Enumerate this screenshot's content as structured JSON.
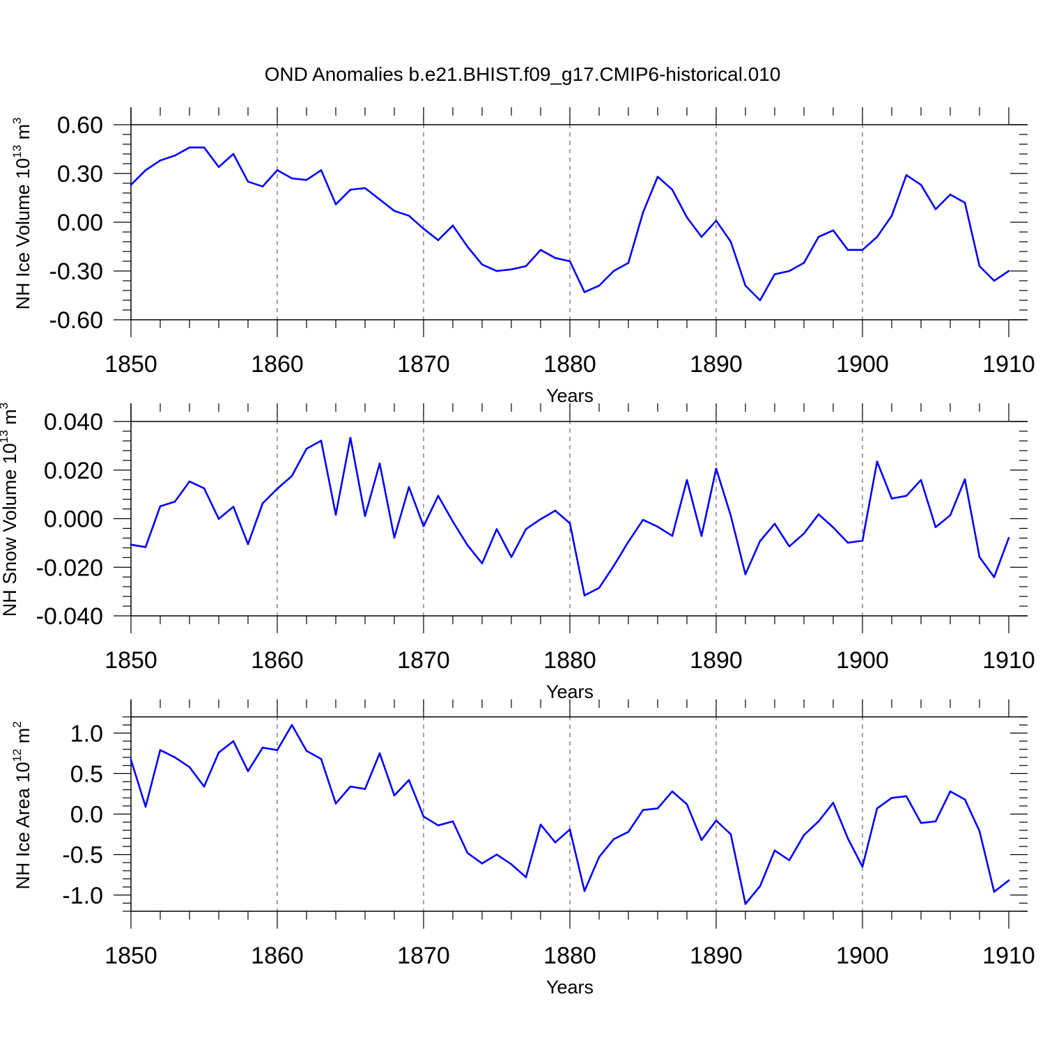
{
  "title": "OND Anomalies b.e21.BHIST.f09_g17.CMIP6-historical.010",
  "colors": {
    "line": "#0000ff",
    "axis": "#000000",
    "grid": "#666666",
    "background": "#ffffff"
  },
  "chart_data": [
    {
      "type": "line",
      "name": "nh-ice-volume",
      "title": "OND Anomalies b.e21.BHIST.f09_g17.CMIP6-historical.010",
      "ylabel": {
        "text": "NH Ice Volume 10",
        "exp": "13",
        "unit": " m",
        "unit_exp": "3"
      },
      "xlabel": "Years",
      "xlim": [
        1850,
        1910
      ],
      "ylim": [
        -0.6,
        0.6
      ],
      "yticks": [
        -0.6,
        -0.3,
        0.0,
        0.3,
        0.6
      ],
      "ytick_labels": [
        "-0.60",
        "-0.30",
        "0.00",
        "0.30",
        "0.60"
      ],
      "xticks": [
        1850,
        1860,
        1870,
        1880,
        1890,
        1900,
        1910
      ],
      "xtick_labels": [
        "1850",
        "1860",
        "1870",
        "1880",
        "1890",
        "1900",
        "1910"
      ],
      "grid": "vertical dashed at decades",
      "x": [
        1850,
        1851,
        1852,
        1853,
        1854,
        1855,
        1856,
        1857,
        1858,
        1859,
        1860,
        1861,
        1862,
        1863,
        1864,
        1865,
        1866,
        1867,
        1868,
        1869,
        1870,
        1871,
        1872,
        1873,
        1874,
        1875,
        1876,
        1877,
        1878,
        1879,
        1880,
        1881,
        1882,
        1883,
        1884,
        1885,
        1886,
        1887,
        1888,
        1889,
        1890,
        1891,
        1892,
        1893,
        1894,
        1895,
        1896,
        1897,
        1898,
        1899,
        1900,
        1901,
        1902,
        1903,
        1904,
        1905,
        1906,
        1907,
        1908,
        1909,
        1910
      ],
      "values": [
        0.23,
        0.32,
        0.38,
        0.41,
        0.46,
        0.46,
        0.34,
        0.42,
        0.25,
        0.22,
        0.32,
        0.27,
        0.26,
        0.32,
        0.11,
        0.2,
        0.21,
        0.14,
        0.07,
        0.04,
        -0.04,
        -0.11,
        -0.02,
        -0.15,
        -0.26,
        -0.3,
        -0.29,
        -0.27,
        -0.17,
        -0.22,
        -0.24,
        -0.43,
        -0.39,
        -0.3,
        -0.25,
        0.06,
        0.28,
        0.2,
        0.03,
        -0.09,
        0.01,
        -0.12,
        -0.39,
        -0.48,
        -0.32,
        -0.3,
        -0.25,
        -0.09,
        -0.05,
        -0.17,
        -0.17,
        -0.09,
        0.04,
        0.29,
        0.23,
        0.08,
        0.17,
        0.12,
        -0.27,
        -0.36,
        -0.3
      ]
    },
    {
      "type": "line",
      "name": "nh-snow-volume",
      "ylabel": {
        "text": "NH Snow Volume 10",
        "exp": "13",
        "unit": " m",
        "unit_exp": "3"
      },
      "xlabel": "Years",
      "xlim": [
        1850,
        1910
      ],
      "ylim": [
        -0.04,
        0.04
      ],
      "yticks": [
        -0.04,
        -0.02,
        0.0,
        0.02,
        0.04
      ],
      "ytick_labels": [
        "-0.040",
        "-0.020",
        "0.000",
        "0.020",
        "0.040"
      ],
      "xticks": [
        1850,
        1860,
        1870,
        1880,
        1890,
        1900,
        1910
      ],
      "xtick_labels": [
        "1850",
        "1860",
        "1870",
        "1880",
        "1890",
        "1900",
        "1910"
      ],
      "grid": "vertical dashed at decades",
      "x": [
        1850,
        1851,
        1852,
        1853,
        1854,
        1855,
        1856,
        1857,
        1858,
        1859,
        1860,
        1861,
        1862,
        1863,
        1864,
        1865,
        1866,
        1867,
        1868,
        1869,
        1870,
        1871,
        1872,
        1873,
        1874,
        1875,
        1876,
        1877,
        1878,
        1879,
        1880,
        1881,
        1882,
        1883,
        1884,
        1885,
        1886,
        1887,
        1888,
        1889,
        1890,
        1891,
        1892,
        1893,
        1894,
        1895,
        1896,
        1897,
        1898,
        1899,
        1900,
        1901,
        1902,
        1903,
        1904,
        1905,
        1906,
        1907,
        1908,
        1909,
        1910
      ],
      "values": [
        -0.0107,
        -0.0117,
        0.0051,
        0.007,
        0.0153,
        0.0125,
        -0.0001,
        0.0049,
        -0.0105,
        0.0063,
        0.0123,
        0.0176,
        0.0288,
        0.0321,
        0.0016,
        0.0333,
        0.0011,
        0.0227,
        -0.0078,
        0.013,
        -0.0031,
        0.0094,
        -0.0012,
        -0.0109,
        -0.0184,
        -0.0043,
        -0.0158,
        -0.0043,
        -0.0002,
        0.0033,
        -0.0019,
        -0.0316,
        -0.0285,
        -0.0194,
        -0.0095,
        -0.0005,
        -0.0033,
        -0.0071,
        0.0159,
        -0.0071,
        0.0206,
        0.0012,
        -0.0229,
        -0.0092,
        -0.0021,
        -0.0114,
        -0.0061,
        0.0018,
        -0.0036,
        -0.0099,
        -0.0091,
        0.0235,
        0.0083,
        0.0094,
        0.0159,
        -0.0035,
        0.0014,
        0.0162,
        -0.0158,
        -0.0241,
        -0.0079
      ]
    },
    {
      "type": "line",
      "name": "nh-ice-area",
      "ylabel": {
        "text": "NH Ice Area 10",
        "exp": "12",
        "unit": " m",
        "unit_exp": "2"
      },
      "xlabel": "Years",
      "xlim": [
        1850,
        1910
      ],
      "ylim": [
        -1.2,
        1.2
      ],
      "yticks": [
        -1.0,
        -0.5,
        0.0,
        0.5,
        1.0
      ],
      "ytick_labels": [
        "-1.0",
        "-0.5",
        "0.0",
        "0.5",
        "1.0"
      ],
      "xticks": [
        1850,
        1860,
        1870,
        1880,
        1890,
        1900,
        1910
      ],
      "xtick_labels": [
        "1850",
        "1860",
        "1870",
        "1880",
        "1890",
        "1900",
        "1910"
      ],
      "grid": "vertical dashed at decades",
      "x": [
        1850,
        1851,
        1852,
        1853,
        1854,
        1855,
        1856,
        1857,
        1858,
        1859,
        1860,
        1861,
        1862,
        1863,
        1864,
        1865,
        1866,
        1867,
        1868,
        1869,
        1870,
        1871,
        1872,
        1873,
        1874,
        1875,
        1876,
        1877,
        1878,
        1879,
        1880,
        1881,
        1882,
        1883,
        1884,
        1885,
        1886,
        1887,
        1888,
        1889,
        1890,
        1891,
        1892,
        1893,
        1894,
        1895,
        1896,
        1897,
        1898,
        1899,
        1900,
        1901,
        1902,
        1903,
        1904,
        1905,
        1906,
        1907,
        1908,
        1909,
        1910
      ],
      "values": [
        0.67,
        0.09,
        0.79,
        0.7,
        0.58,
        0.34,
        0.76,
        0.9,
        0.53,
        0.82,
        0.79,
        1.1,
        0.78,
        0.68,
        0.13,
        0.34,
        0.31,
        0.75,
        0.23,
        0.42,
        -0.03,
        -0.14,
        -0.09,
        -0.48,
        -0.61,
        -0.5,
        -0.62,
        -0.78,
        -0.13,
        -0.35,
        -0.19,
        -0.95,
        -0.53,
        -0.31,
        -0.22,
        0.05,
        0.07,
        0.28,
        0.12,
        -0.32,
        -0.08,
        -0.25,
        -1.11,
        -0.89,
        -0.45,
        -0.57,
        -0.26,
        -0.09,
        0.14,
        -0.3,
        -0.65,
        0.07,
        0.2,
        0.22,
        -0.11,
        -0.09,
        0.28,
        0.18,
        -0.21,
        -0.96,
        -0.82
      ]
    }
  ]
}
